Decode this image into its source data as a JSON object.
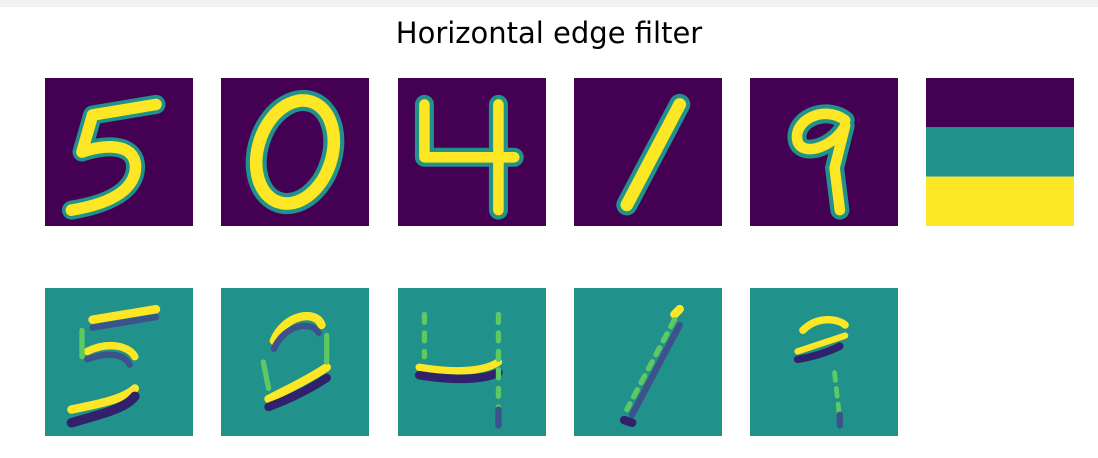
{
  "figure": {
    "title": "Horizontal edge filter"
  },
  "colors": {
    "background_low": "#440154",
    "mid": "#21918c",
    "high": "#fde725",
    "dark_blue": "#3b528b",
    "green": "#5ec962",
    "deep": "#31206b"
  },
  "kernel": {
    "rows": [
      "low",
      "mid",
      "high"
    ]
  },
  "input_digits": [
    "5",
    "0",
    "4",
    "1",
    "9"
  ],
  "filtered_outputs": [
    "5",
    "0",
    "4",
    "1",
    "9"
  ]
}
